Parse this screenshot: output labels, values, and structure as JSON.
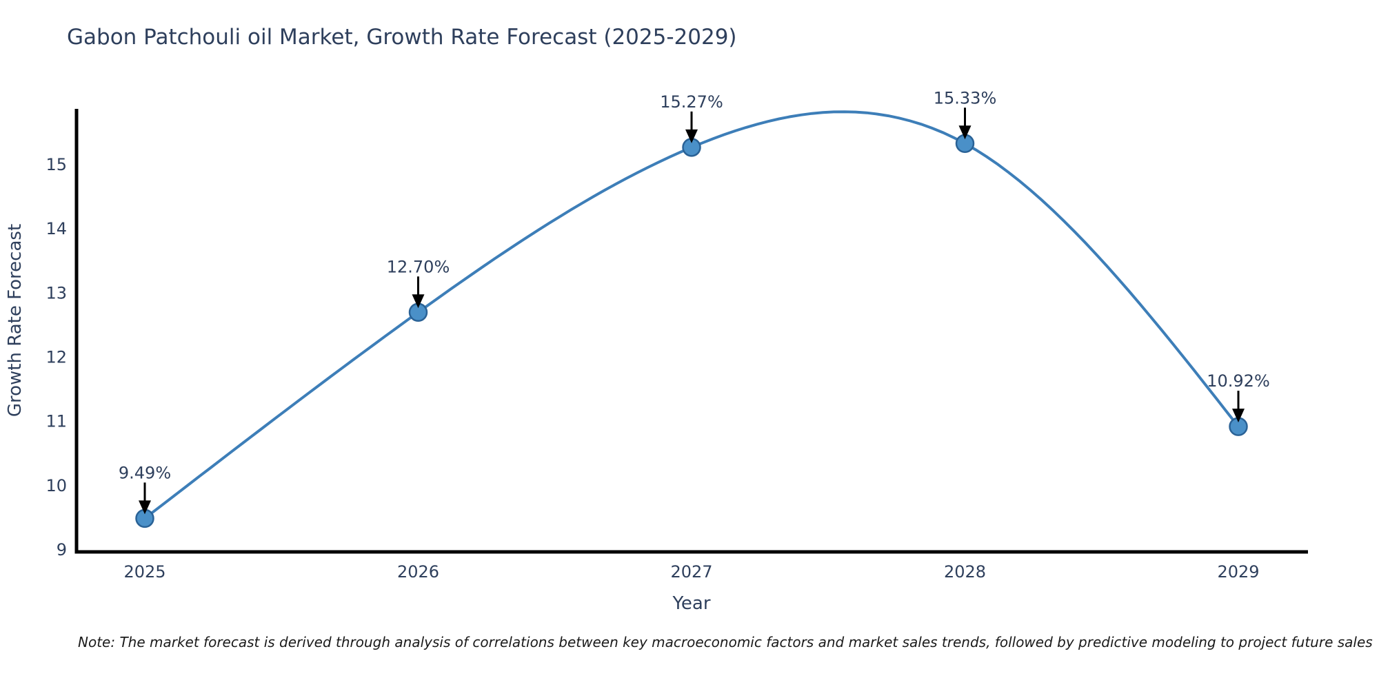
{
  "chart_data": {
    "type": "line",
    "title": "Gabon Patchouli oil Market, Growth Rate Forecast (2025-2029)",
    "xlabel": "Year",
    "ylabel": "Growth Rate Forecast",
    "categories": [
      "2025",
      "2026",
      "2027",
      "2028",
      "2029"
    ],
    "values": [
      9.49,
      12.7,
      15.27,
      15.33,
      10.92
    ],
    "point_labels": [
      "9.49%",
      "12.70%",
      "15.27%",
      "15.33%",
      "10.92%"
    ],
    "y_ticks": [
      9,
      10,
      11,
      12,
      13,
      14,
      15
    ],
    "ylim": [
      9,
      15.86
    ],
    "grid": false,
    "legend": "none",
    "line_shape": "spline",
    "colors": {
      "line": "#3d7eb8",
      "marker_fill": "#4a90c8",
      "marker_edge": "#2a6296",
      "axis": "#000000",
      "text": "#2e3f5c",
      "annotation_arrow": "#000000",
      "note_text": "#1a1a1a"
    }
  },
  "note": "Note: The market forecast is derived through analysis of correlations between key macroeconomic factors and market sales trends, followed by predictive modeling to project future sales"
}
